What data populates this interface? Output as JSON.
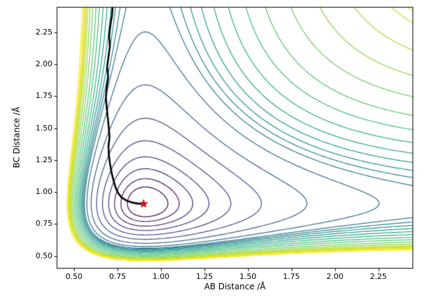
{
  "chart_data": {
    "type": "contour",
    "title": "",
    "xlabel": "AB Distance /Å",
    "ylabel": "BC Distance /Å",
    "xlim": [
      0.4,
      2.45
    ],
    "ylim": [
      0.4,
      2.45
    ],
    "xtick_labels": [
      "0.50",
      "0.75",
      "1.00",
      "1.25",
      "1.50",
      "1.75",
      "2.00",
      "2.25"
    ],
    "xtick_values": [
      0.5,
      0.75,
      1.0,
      1.25,
      1.5,
      1.75,
      2.0,
      2.25
    ],
    "ytick_labels": [
      "0.50",
      "0.75",
      "1.00",
      "1.25",
      "1.50",
      "1.75",
      "2.00",
      "2.25"
    ],
    "ytick_values": [
      0.5,
      0.75,
      1.0,
      1.25,
      1.5,
      1.75,
      2.0,
      2.25
    ],
    "grid": false,
    "legend": null,
    "background_color": "#ffffff",
    "spine_color": "#000000",
    "surface": {
      "model": "sum_of_morse_potentials",
      "formula": "V = D*(1-exp(-a*(rAB-r0)))^2 + D*(1-exp(-a*(rBC-r0)))^2",
      "D": 1.0,
      "a": 1.95,
      "r0": 0.91
    },
    "levels": [
      0.05,
      0.1,
      0.17,
      0.26,
      0.38,
      0.53,
      0.7,
      0.86,
      0.96,
      1.01,
      1.06,
      1.12,
      1.19,
      1.27,
      1.36,
      1.45,
      1.55,
      1.64,
      1.72,
      1.78,
      1.8,
      1.85,
      1.9,
      1.97
    ],
    "colormap": {
      "name": "viridis",
      "anchors": [
        "#440154",
        "#482878",
        "#3e4989",
        "#31688e",
        "#26828e",
        "#1f9e89",
        "#35b779",
        "#6ece58",
        "#b5de2b",
        "#dde318",
        "#fde725"
      ]
    },
    "trajectory": {
      "description": "minimisation path",
      "color": "#000000",
      "line_width": 2.6,
      "points": [
        [
          0.722,
          2.45
        ],
        [
          0.718,
          2.38
        ],
        [
          0.708,
          2.3
        ],
        [
          0.702,
          2.22
        ],
        [
          0.706,
          2.14
        ],
        [
          0.698,
          2.06
        ],
        [
          0.69,
          1.98
        ],
        [
          0.696,
          1.9
        ],
        [
          0.688,
          1.82
        ],
        [
          0.683,
          1.74
        ],
        [
          0.688,
          1.66
        ],
        [
          0.694,
          1.58
        ],
        [
          0.7,
          1.5
        ],
        [
          0.704,
          1.43
        ],
        [
          0.698,
          1.36
        ],
        [
          0.7,
          1.29
        ],
        [
          0.707,
          1.22
        ],
        [
          0.716,
          1.15
        ],
        [
          0.727,
          1.09
        ],
        [
          0.739,
          1.035
        ],
        [
          0.754,
          0.99
        ],
        [
          0.775,
          0.955
        ],
        [
          0.803,
          0.932
        ],
        [
          0.838,
          0.916
        ],
        [
          0.87,
          0.909
        ],
        [
          0.9,
          0.907
        ]
      ]
    },
    "minimum_marker": {
      "x": 0.9,
      "y": 0.907,
      "symbol": "star",
      "color": "#ff0000",
      "edge_color": "#8b0000"
    }
  }
}
